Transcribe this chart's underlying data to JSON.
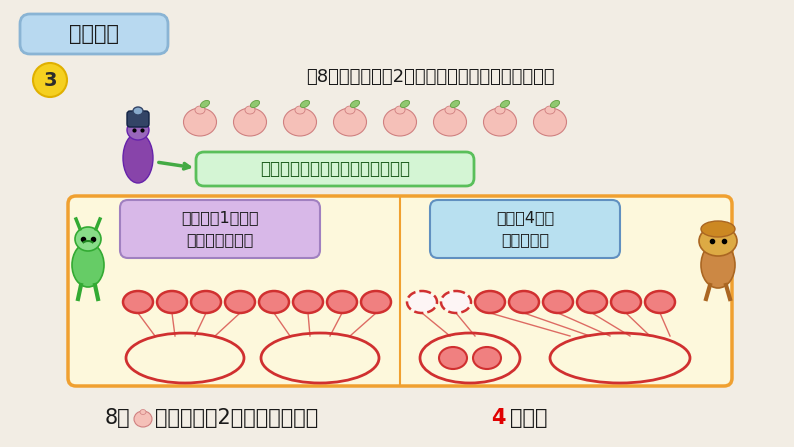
{
  "bg_color": "#f2ede4",
  "title_box_text": "探究新知",
  "title_box_bg": "#b8d9f0",
  "title_box_border": "#8ab4d4",
  "question_num": "3",
  "question_num_bg": "#f5d020",
  "question_text": "把8个桃平均分给2个小朋友，每个小朋友分几个？",
  "hint_text": "先用圆片分一分，再和同学交流。",
  "hint_bg": "#d4f5d4",
  "hint_border": "#5abf5a",
  "yellow_box_bg": "#fdf8dc",
  "yellow_box_border": "#f0a030",
  "left_speech_line1": "每人先分1个，照",
  "left_speech_line2": "这样接着再分。",
  "left_speech_bg": "#d8b8e8",
  "right_speech_line1": "每人分4个，",
  "right_speech_line2": "正好分完。",
  "right_speech_bg": "#b8e0f0",
  "circle_fill": "#f08080",
  "circle_edge": "#d03030",
  "oval_fill": "#fdf8dc",
  "oval_edge": "#d03030",
  "peach_fill": "#f5c0b8",
  "peach_edge": "#d08080",
  "answer_num_color": "#e00000",
  "text_color": "#1a1a1a"
}
